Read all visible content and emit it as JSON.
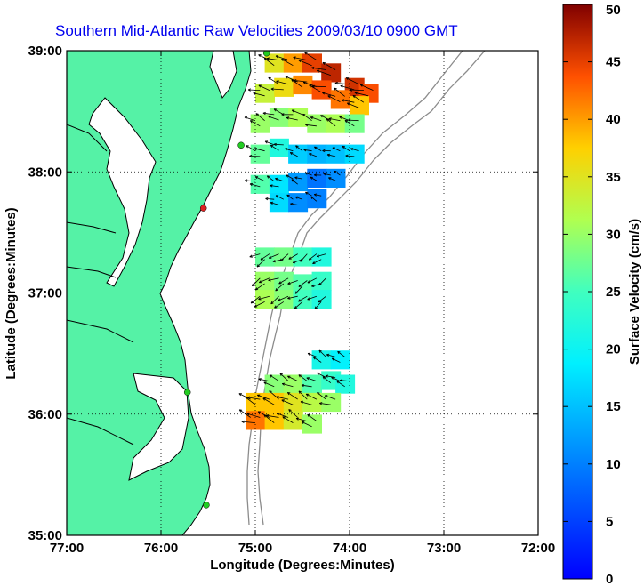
{
  "chart_data": {
    "type": "heatmap",
    "title": "Southern Mid-Atlantic Raw Velocities 2009/03/10 0900 GMT",
    "xlabel": "Longitude (Degrees:Minutes)",
    "ylabel": "Latitude (Degrees:Minutes)",
    "xlim": [
      -77,
      -72
    ],
    "ylim": [
      35,
      39
    ],
    "x_ticks": [
      {
        "value": -77,
        "label": "77:00"
      },
      {
        "value": -76,
        "label": "76:00"
      },
      {
        "value": -75,
        "label": "75:00"
      },
      {
        "value": -74,
        "label": "74:00"
      },
      {
        "value": -73,
        "label": "73:00"
      },
      {
        "value": -72,
        "label": "72:00"
      }
    ],
    "y_ticks": [
      {
        "value": 35,
        "label": "35:00"
      },
      {
        "value": 36,
        "label": "36:00"
      },
      {
        "value": 37,
        "label": "37:00"
      },
      {
        "value": 38,
        "label": "38:00"
      },
      {
        "value": 39,
        "label": "39:00"
      }
    ],
    "grid": true,
    "colorbar": {
      "label": "Surface Velocity (cm/s)",
      "range": [
        0,
        50
      ],
      "ticks": [
        0,
        5,
        10,
        15,
        20,
        25,
        30,
        35,
        40,
        45,
        50
      ],
      "colormap": "jet",
      "placement": "right"
    },
    "land_color": "#55f2a6",
    "coast_color": "#000000",
    "bathymetry_color": "#8c8c8c",
    "station_color": "#22cc22",
    "vector_color": "#000000",
    "regions": [
      {
        "name": "north",
        "lon_range": [
          -75.03,
          -73.72
        ],
        "lat_range": [
          37.72,
          39.0
        ],
        "cells": [
          [
            -74.8,
            38.9,
            35
          ],
          [
            -74.6,
            38.9,
            40
          ],
          [
            -74.4,
            38.9,
            45
          ],
          [
            -74.2,
            38.82,
            47
          ],
          [
            -73.95,
            38.7,
            46
          ],
          [
            -73.8,
            38.65,
            44
          ],
          [
            -74.9,
            38.65,
            33
          ],
          [
            -74.7,
            38.7,
            36
          ],
          [
            -74.5,
            38.72,
            41
          ],
          [
            -74.3,
            38.68,
            44
          ],
          [
            -74.1,
            38.6,
            42
          ],
          [
            -73.9,
            38.55,
            38
          ],
          [
            -74.95,
            38.4,
            30
          ],
          [
            -74.75,
            38.45,
            29
          ],
          [
            -74.55,
            38.45,
            31
          ],
          [
            -74.35,
            38.4,
            30
          ],
          [
            -74.15,
            38.4,
            31
          ],
          [
            -73.95,
            38.4,
            28
          ],
          [
            -74.95,
            38.15,
            27
          ],
          [
            -74.75,
            38.2,
            22
          ],
          [
            -74.55,
            38.15,
            16
          ],
          [
            -74.35,
            38.15,
            14
          ],
          [
            -74.15,
            38.15,
            15
          ],
          [
            -73.95,
            38.15,
            17
          ],
          [
            -74.95,
            37.9,
            26
          ],
          [
            -74.75,
            37.9,
            18
          ],
          [
            -74.55,
            37.92,
            12
          ],
          [
            -74.35,
            37.95,
            9
          ],
          [
            -74.15,
            37.95,
            11
          ],
          [
            -74.75,
            37.75,
            17
          ],
          [
            -74.55,
            37.75,
            11
          ],
          [
            -74.35,
            37.78,
            10
          ]
        ]
      },
      {
        "name": "middle",
        "lon_range": [
          -75.0,
          -74.23
        ],
        "lat_range": [
          36.9,
          37.4
        ],
        "cells": [
          [
            -74.9,
            37.3,
            27
          ],
          [
            -74.7,
            37.3,
            28
          ],
          [
            -74.5,
            37.3,
            25
          ],
          [
            -74.3,
            37.3,
            22
          ],
          [
            -74.9,
            37.1,
            30
          ],
          [
            -74.7,
            37.1,
            28
          ],
          [
            -74.5,
            37.08,
            26
          ],
          [
            -74.3,
            37.1,
            24
          ],
          [
            -74.9,
            36.95,
            31
          ],
          [
            -74.7,
            36.95,
            29
          ],
          [
            -74.5,
            36.95,
            25
          ],
          [
            -74.3,
            36.95,
            22
          ]
        ]
      },
      {
        "name": "south",
        "lon_range": [
          -75.1,
          -73.95
        ],
        "lat_range": [
          35.82,
          36.52
        ],
        "cells": [
          [
            -74.3,
            36.45,
            21
          ],
          [
            -74.1,
            36.45,
            19
          ],
          [
            -74.8,
            36.25,
            29
          ],
          [
            -74.6,
            36.25,
            30
          ],
          [
            -74.4,
            36.25,
            26
          ],
          [
            -74.2,
            36.28,
            24
          ],
          [
            -74.05,
            36.25,
            22
          ],
          [
            -75.0,
            36.1,
            38
          ],
          [
            -74.8,
            36.1,
            38
          ],
          [
            -74.6,
            36.1,
            35
          ],
          [
            -74.4,
            36.1,
            32
          ],
          [
            -74.2,
            36.1,
            30
          ],
          [
            -75.0,
            35.95,
            42
          ],
          [
            -74.8,
            35.95,
            38
          ],
          [
            -74.6,
            35.95,
            34
          ],
          [
            -74.4,
            35.92,
            30
          ]
        ]
      }
    ],
    "stations": [
      {
        "lon": -74.88,
        "lat": 38.98
      },
      {
        "lon": -75.15,
        "lat": 38.22
      },
      {
        "lon": -75.55,
        "lat": 37.7,
        "color": "#dd2222"
      },
      {
        "lon": -75.72,
        "lat": 36.18
      },
      {
        "lon": -75.52,
        "lat": 35.25
      }
    ]
  }
}
